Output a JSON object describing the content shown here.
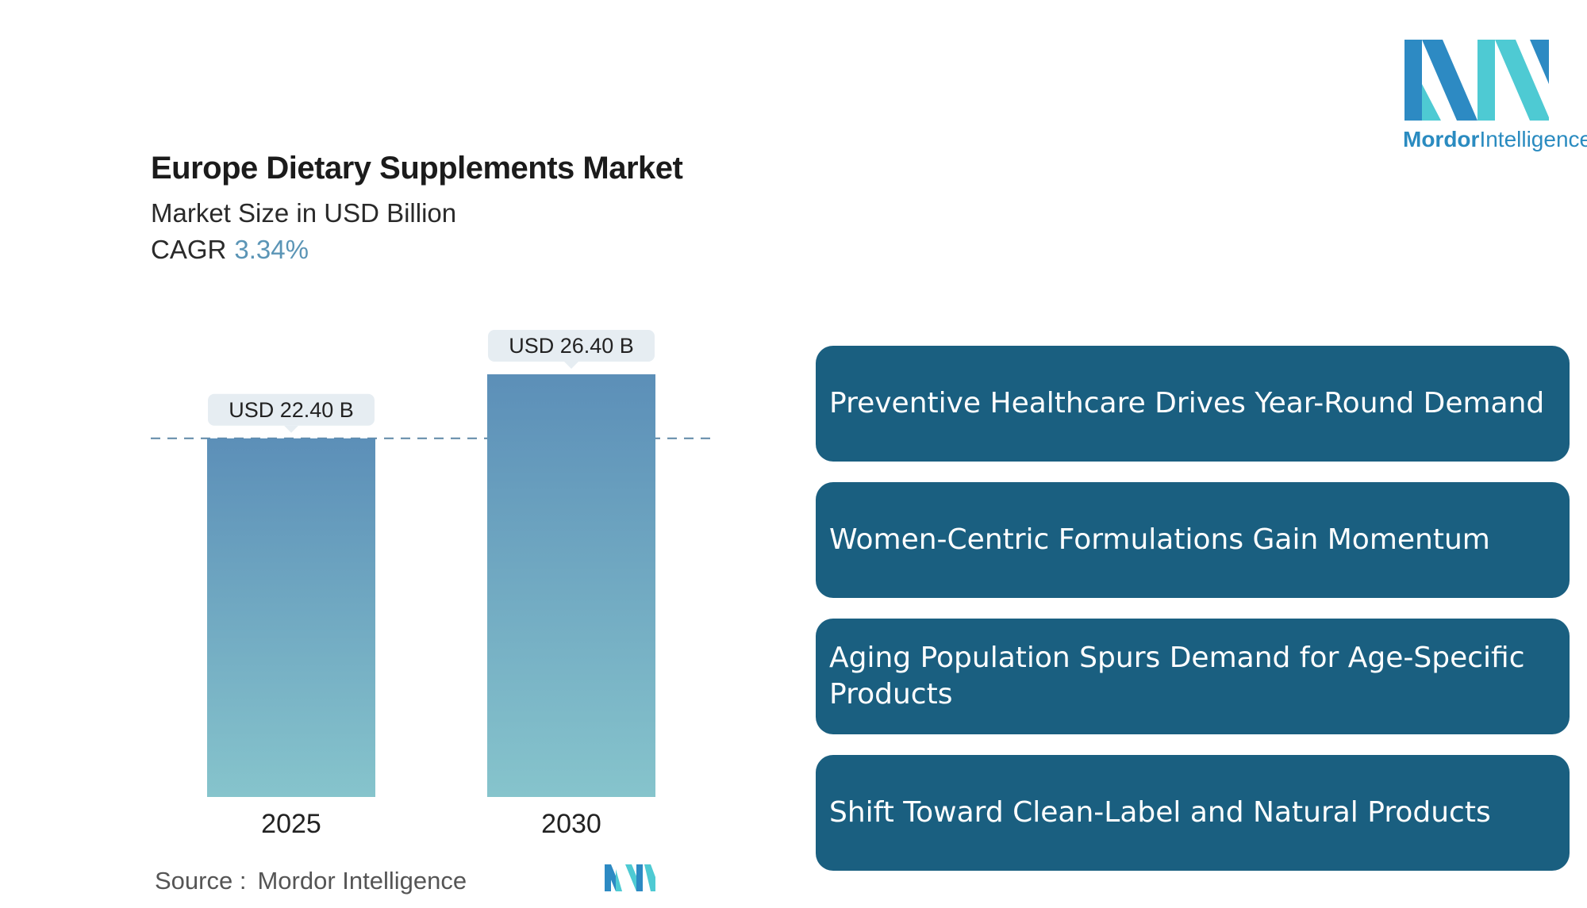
{
  "header": {
    "title": "Europe Dietary Supplements Market",
    "subtitle": "Market Size in USD Billion",
    "cagr_label": "CAGR",
    "cagr_value": "3.34%"
  },
  "chart_data": {
    "type": "bar",
    "categories": [
      "2025",
      "2030"
    ],
    "values": [
      22.4,
      26.4
    ],
    "value_labels": [
      "USD 22.40 B",
      "USD 26.40 B"
    ],
    "title": "Europe Dietary Supplements Market",
    "subtitle": "Market Size in USD Billion",
    "ylabel": "",
    "xlabel": "",
    "ylim": [
      0,
      26.4
    ],
    "reference_line_value": 22.4,
    "grid": false,
    "colors": {
      "bar_top": "#5c8fb8",
      "bar_bottom": "#86c4cc",
      "label_bg": "#e6edf2",
      "dash": "#5e87a6"
    }
  },
  "highlights": [
    "Preventive Healthcare Drives Year-Round Demand",
    "Women-Centric Formulations Gain Momentum",
    "Aging Population Spurs Demand for Age-Specific Products",
    "Shift Toward Clean-Label and Natural Products"
  ],
  "source": {
    "label": "Source :",
    "name": "Mordor Intelligence"
  },
  "brand": {
    "name_bold": "Mordor",
    "name_rest": "Intelligence",
    "colors": {
      "dark": "#2d8ac3",
      "light": "#4ecad3",
      "text": "#2a8bc0"
    }
  },
  "card_color": "#1a5f80"
}
